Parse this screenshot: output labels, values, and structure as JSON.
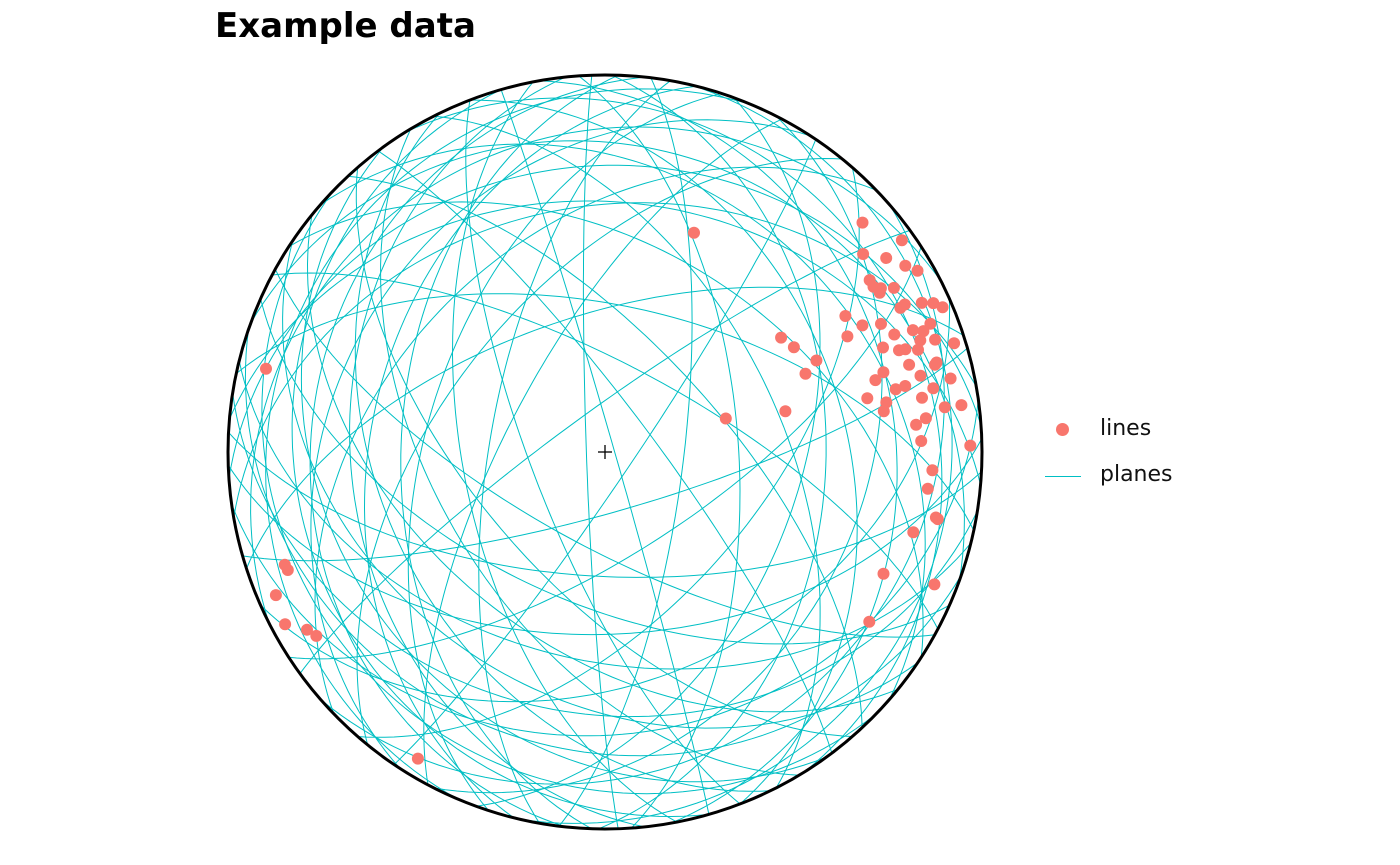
{
  "chart_data": {
    "type": "scatter",
    "title": "Example data",
    "projection": "equal-area stereonet, lower hemisphere",
    "colors": {
      "lines": "#F8766D",
      "planes": "#00BFC4",
      "primitive": "#000000"
    },
    "legend": {
      "position": "right",
      "entries": [
        {
          "label": "lines",
          "kind": "point",
          "color": "#F8766D"
        },
        {
          "label": "planes",
          "kind": "line",
          "color": "#00BFC4"
        }
      ]
    },
    "lines": {
      "name": "lines",
      "points": [
        {
          "trend": 48.3,
          "plunge": 9.4
        },
        {
          "trend": 54.5,
          "plunge": 3.7
        },
        {
          "trend": 55.4,
          "plunge": 10.3
        },
        {
          "trend": 58.2,
          "plunge": 7.0
        },
        {
          "trend": 52.5,
          "plunge": 14.8
        },
        {
          "trend": 59.9,
          "plunge": 4.7
        },
        {
          "trend": 57.0,
          "plunge": 17.4
        },
        {
          "trend": 59.9,
          "plunge": 16.9
        },
        {
          "trend": 58.4,
          "plunge": 17.5
        },
        {
          "trend": 59.3,
          "plunge": 16.0
        },
        {
          "trend": 63.8,
          "plunge": 12.4
        },
        {
          "trend": 65.6,
          "plunge": 4.9
        },
        {
          "trend": 64.8,
          "plunge": 7.9
        },
        {
          "trend": 64.0,
          "plunge": 13.9
        },
        {
          "trend": 68.5,
          "plunge": 8.0
        },
        {
          "trend": 60.5,
          "plunge": 27.6
        },
        {
          "trend": 64.5,
          "plunge": 29.5
        },
        {
          "trend": 65.1,
          "plunge": 20.4
        },
        {
          "trend": 67.9,
          "plunge": 18.3
        },
        {
          "trend": 68.4,
          "plunge": 13.2
        },
        {
          "trend": 69.2,
          "plunge": 10.6
        },
        {
          "trend": 70.5,
          "plunge": 12.3
        },
        {
          "trend": 71.9,
          "plunge": 13.7
        },
        {
          "trend": 71.2,
          "plunge": 8.3
        },
        {
          "trend": 72.7,
          "plunge": 3.4
        },
        {
          "trend": 71.1,
          "plunge": 16.9
        },
        {
          "trend": 70.9,
          "plunge": 18.6
        },
        {
          "trend": 69.4,
          "plunge": 22.3
        },
        {
          "trend": 74.0,
          "plunge": 24.2
        },
        {
          "trend": 76.4,
          "plunge": 15.0
        },
        {
          "trend": 74.9,
          "plunge": 9.8
        },
        {
          "trend": 75.2,
          "plunge": 10.4
        },
        {
          "trend": 74.0,
          "plunge": 17.2
        },
        {
          "trend": 77.6,
          "plunge": 19.6
        },
        {
          "trend": 80.3,
          "plunge": 15.8
        },
        {
          "trend": 78.0,
          "plunge": 7.0
        },
        {
          "trend": 79.0,
          "plunge": 12.3
        },
        {
          "trend": 75.1,
          "plunge": 26.7
        },
        {
          "trend": 78.4,
          "plunge": 29.7
        },
        {
          "trend": 80.0,
          "plunge": 25.2
        },
        {
          "trend": 77.8,
          "plunge": 22.2
        },
        {
          "trend": 81.7,
          "plunge": 26.2
        },
        {
          "trend": 82.5,
          "plunge": 5.2
        },
        {
          "trend": 84.0,
          "plunge": 15.5
        },
        {
          "trend": 82.5,
          "plunge": 10.0
        },
        {
          "trend": 85.0,
          "plunge": 18.3
        },
        {
          "trend": 88.0,
          "plunge": 17.2
        },
        {
          "trend": 89.0,
          "plunge": 3.5
        },
        {
          "trend": 93.2,
          "plunge": 14.1
        },
        {
          "trend": 96.5,
          "plunge": 14.9
        },
        {
          "trend": 101.2,
          "plunge": 11.5
        },
        {
          "trend": 101.4,
          "plunge": 10.9
        },
        {
          "trend": 113.6,
          "plunge": 20.5
        },
        {
          "trend": 111.9,
          "plunge": 6.5
        },
        {
          "trend": 104.6,
          "plunge": 16.6
        },
        {
          "trend": 122.7,
          "plunge": 17.8
        },
        {
          "trend": 57.0,
          "plunge": 43.6
        },
        {
          "trend": 61.0,
          "plunge": 42.2
        },
        {
          "trend": 66.6,
          "plunge": 38.8
        },
        {
          "trend": 68.7,
          "plunge": 42.4
        },
        {
          "trend": 77.3,
          "plunge": 49.4
        },
        {
          "trend": 22.1,
          "plunge": 37.3
        },
        {
          "trend": 74.5,
          "plunge": 62.8
        },
        {
          "trend": 283.8,
          "plunge": 8.2
        },
        {
          "trend": 250.6,
          "plunge": 10.9
        },
        {
          "trend": 249.6,
          "plunge": 11.2
        },
        {
          "trend": 246.5,
          "plunge": 5.4
        },
        {
          "trend": 241.7,
          "plunge": 4.1
        },
        {
          "trend": 237.5,
          "plunge": 10.1
        },
        {
          "trend": 239.2,
          "plunge": 8.8
        },
        {
          "trend": 211.4,
          "plunge": 5.3
        },
        {
          "trend": 60.4,
          "plunge": 12.9
        },
        {
          "trend": 66.8,
          "plunge": 2.9
        },
        {
          "trend": 63.8,
          "plunge": 24.9
        }
      ]
    },
    "planes": {
      "name": "planes",
      "dip_directions": [
        5,
        12,
        20,
        28,
        33,
        41,
        47,
        53,
        58,
        63,
        69,
        74,
        80,
        86,
        91,
        97,
        103,
        110,
        117,
        124,
        131,
        139,
        147,
        156,
        164,
        172,
        178,
        183,
        189,
        194,
        199,
        204,
        209,
        214,
        219,
        224,
        229,
        234,
        239,
        244,
        249,
        254,
        259,
        264,
        268,
        272,
        276,
        280,
        284,
        288,
        293,
        298,
        303,
        309,
        316,
        324,
        333,
        342,
        350,
        356
      ],
      "dips": [
        34,
        58,
        20,
        71,
        45,
        28,
        66,
        80,
        14,
        52,
        37,
        88,
        24,
        61,
        41,
        73,
        9,
        47,
        32,
        84,
        56,
        18,
        68,
        39,
        77,
        26,
        50,
        63,
        31,
        44,
        22,
        57,
        70,
        36,
        48,
        15,
        62,
        27,
        53,
        40,
        74,
        19,
        59,
        33,
        86,
        45,
        23,
        65,
        38,
        51,
        12,
        69,
        29,
        55,
        42,
        81,
        17,
        60,
        35,
        25
      ]
    }
  }
}
